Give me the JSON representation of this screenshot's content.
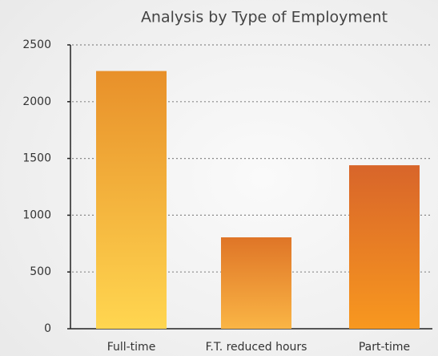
{
  "chart_data": {
    "type": "bar",
    "title": "Analysis by Type of Employment",
    "categories": [
      "Full-time",
      "F.T. reduced hours",
      "Part-time"
    ],
    "values": [
      2270,
      805,
      1440
    ],
    "colors": [
      [
        "#e8902a",
        "#ffd650"
      ],
      [
        "#df7527",
        "#fab545"
      ],
      [
        "#d8652a",
        "#f8981f"
      ]
    ],
    "ylim": [
      0,
      2500
    ],
    "yticks": [
      0,
      500,
      1000,
      1500,
      2000,
      2500
    ],
    "grid": true
  }
}
